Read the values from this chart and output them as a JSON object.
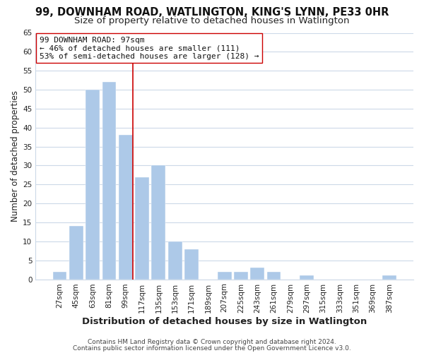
{
  "title": "99, DOWNHAM ROAD, WATLINGTON, KING'S LYNN, PE33 0HR",
  "subtitle": "Size of property relative to detached houses in Watlington",
  "xlabel": "Distribution of detached houses by size in Watlington",
  "ylabel": "Number of detached properties",
  "categories": [
    "27sqm",
    "45sqm",
    "63sqm",
    "81sqm",
    "99sqm",
    "117sqm",
    "135sqm",
    "153sqm",
    "171sqm",
    "189sqm",
    "207sqm",
    "225sqm",
    "243sqm",
    "261sqm",
    "279sqm",
    "297sqm",
    "315sqm",
    "333sqm",
    "351sqm",
    "369sqm",
    "387sqm"
  ],
  "values": [
    2,
    14,
    50,
    52,
    38,
    27,
    30,
    10,
    8,
    0,
    2,
    2,
    3,
    2,
    0,
    1,
    0,
    0,
    0,
    0,
    1
  ],
  "bar_color": "#adc9e8",
  "vline_color": "#cc0000",
  "annotation_lines": [
    "99 DOWNHAM ROAD: 97sqm",
    "← 46% of detached houses are smaller (111)",
    "53% of semi-detached houses are larger (128) →"
  ],
  "ylim": [
    0,
    65
  ],
  "yticks": [
    0,
    5,
    10,
    15,
    20,
    25,
    30,
    35,
    40,
    45,
    50,
    55,
    60,
    65
  ],
  "footer1": "Contains HM Land Registry data © Crown copyright and database right 2024.",
  "footer2": "Contains public sector information licensed under the Open Government Licence v3.0.",
  "background_color": "#ffffff",
  "grid_color": "#ccd9e8",
  "title_fontsize": 10.5,
  "subtitle_fontsize": 9.5,
  "xlabel_fontsize": 9.5,
  "ylabel_fontsize": 8.5,
  "tick_fontsize": 7.5,
  "annotation_fontsize": 8,
  "footer_fontsize": 6.5
}
